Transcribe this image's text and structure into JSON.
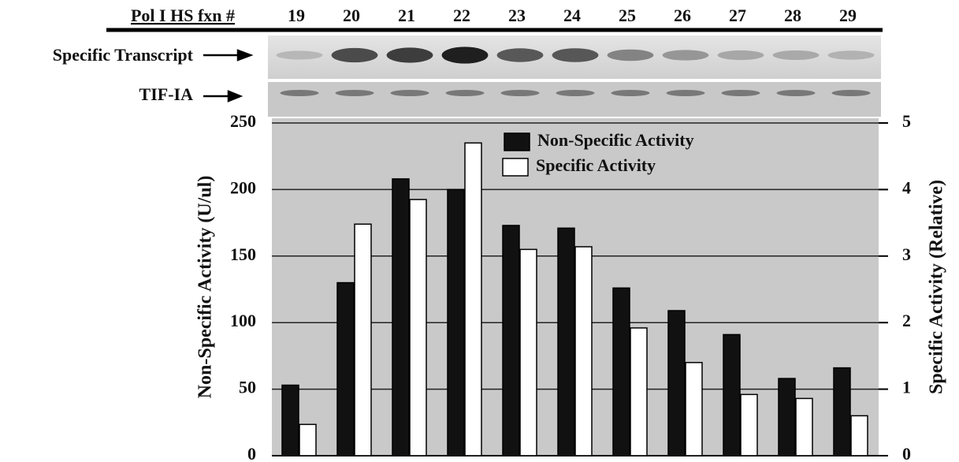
{
  "chart_data": {
    "type": "bar",
    "xlabel": "Pol I HS fxn #",
    "gel_rows": [
      "Specific Transcript",
      "TIF-IA"
    ],
    "categories": [
      "19",
      "20",
      "21",
      "22",
      "23",
      "24",
      "25",
      "26",
      "27",
      "28",
      "29"
    ],
    "ylabel": "Non-Specific Activity (U/ul)",
    "y2label": "Specific Activity (Relative)",
    "ylim": [
      0,
      250
    ],
    "yticks": [
      0,
      50,
      100,
      150,
      200,
      250
    ],
    "y2lim": [
      0,
      5
    ],
    "y2ticks": [
      0,
      1,
      2,
      3,
      4,
      5
    ],
    "grid": true,
    "legend": "top",
    "series": [
      {
        "name": "Non-Specific Activity",
        "color": "#111111",
        "values": [
          53,
          130,
          208,
          200,
          173,
          171,
          126,
          109,
          91,
          58,
          66
        ]
      },
      {
        "name": "Specific Activity",
        "color": "#ffffff",
        "axis": "y2",
        "values": [
          0.47,
          3.48,
          3.85,
          4.7,
          3.1,
          3.14,
          1.92,
          1.4,
          0.92,
          0.86,
          0.6
        ]
      }
    ]
  }
}
